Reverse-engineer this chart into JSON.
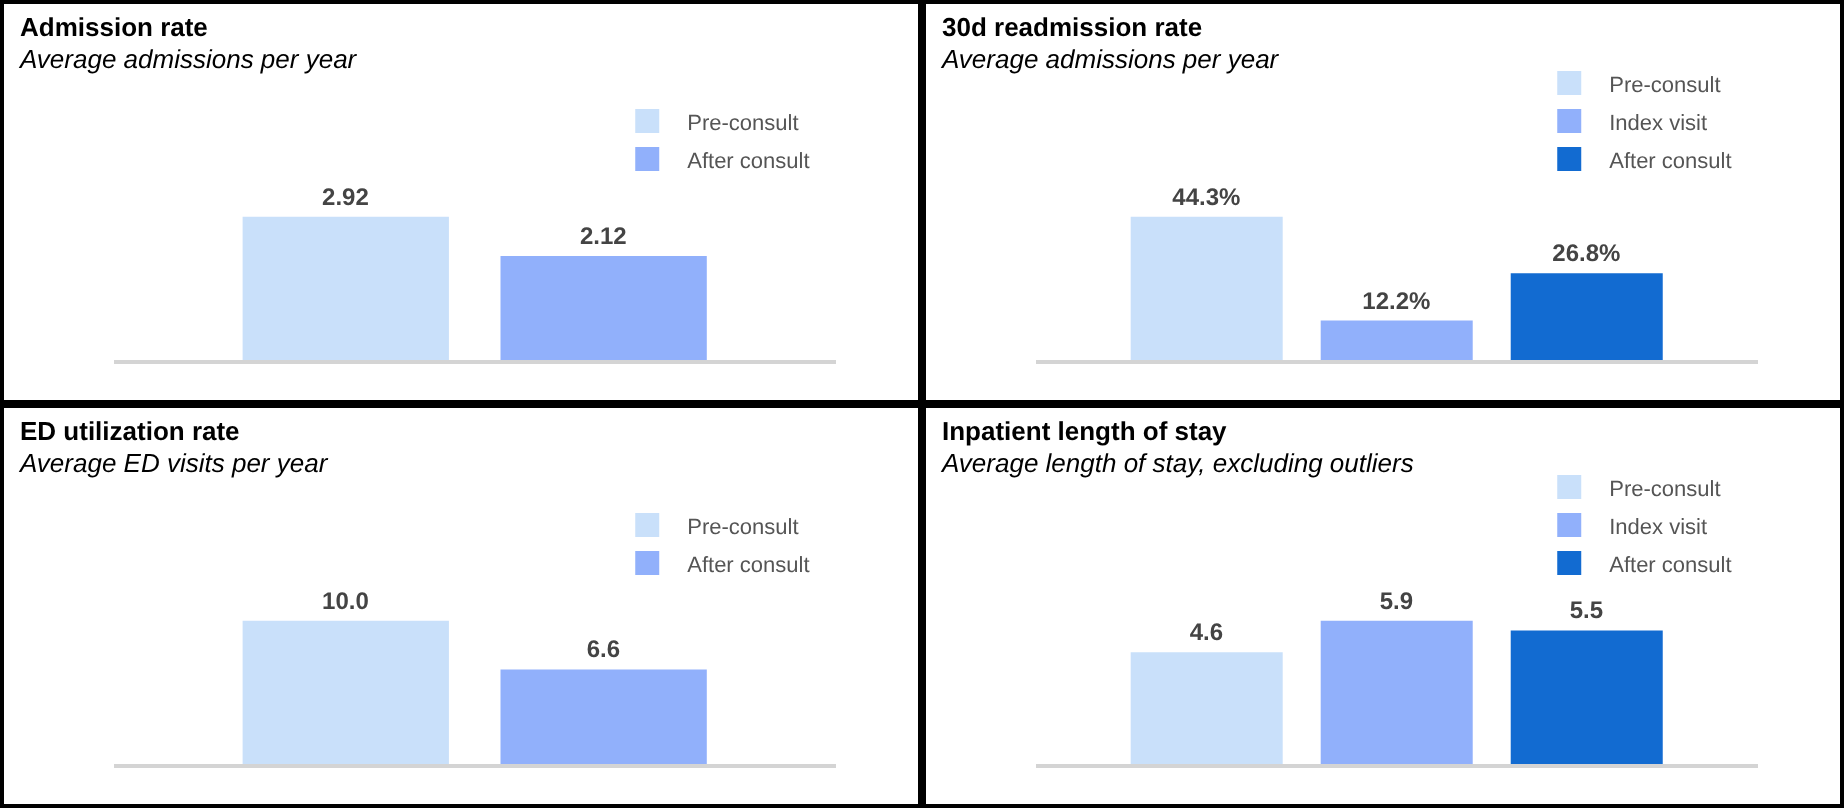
{
  "chart_data": [
    {
      "type": "bar",
      "title": "Admission rate",
      "subtitle": "Average admissions per year",
      "categories": [
        null
      ],
      "legend": "top right",
      "data_labels": true,
      "series": [
        {
          "name": "Pre-consult",
          "color": "#c9e0fa",
          "values": [
            2.92
          ]
        },
        {
          "name": "After consult",
          "color": "#91b0fb",
          "values": [
            2.12
          ]
        }
      ]
    },
    {
      "type": "bar",
      "title": "30d readmission rate",
      "subtitle": "Average admissions per year",
      "categories": [
        null
      ],
      "legend": "top right",
      "series": [
        {
          "name": "Pre-consult",
          "color": "#c9e0fa",
          "values": [
            44.3
          ],
          "value_labels": [
            "44.3%"
          ]
        },
        {
          "name": "Index visit",
          "color": "#91b0fb",
          "values": [
            12.2
          ],
          "value_labels": [
            "12.2%"
          ]
        },
        {
          "name": "After consult",
          "color": "#126bd1",
          "values": [
            26.8
          ],
          "value_labels": [
            "26.8%"
          ]
        }
      ]
    },
    {
      "type": "bar",
      "title": "ED utilization rate",
      "subtitle": "Average ED visits per year",
      "categories": [
        null
      ],
      "legend": "top right",
      "series": [
        {
          "name": "Pre-consult",
          "color": "#c9e0fa",
          "values": [
            10.0
          ],
          "value_labels": [
            "10.0"
          ]
        },
        {
          "name": "After consult",
          "color": "#91b0fb",
          "values": [
            6.6
          ],
          "value_labels": [
            "6.6"
          ]
        }
      ]
    },
    {
      "type": "bar",
      "title": "Inpatient length of stay",
      "subtitle": "Average length of stay, excluding outliers",
      "categories": [
        null
      ],
      "legend": "top right",
      "data_labels": true,
      "series": [
        {
          "name": "Pre-consult",
          "color": "#c9e0fa",
          "values": [
            4.6
          ]
        },
        {
          "name": "Index visit",
          "color": "#91b0fb",
          "values": [
            5.9
          ]
        },
        {
          "name": "After consult",
          "color": "#126bd1",
          "values": [
            5.5
          ]
        }
      ]
    }
  ]
}
